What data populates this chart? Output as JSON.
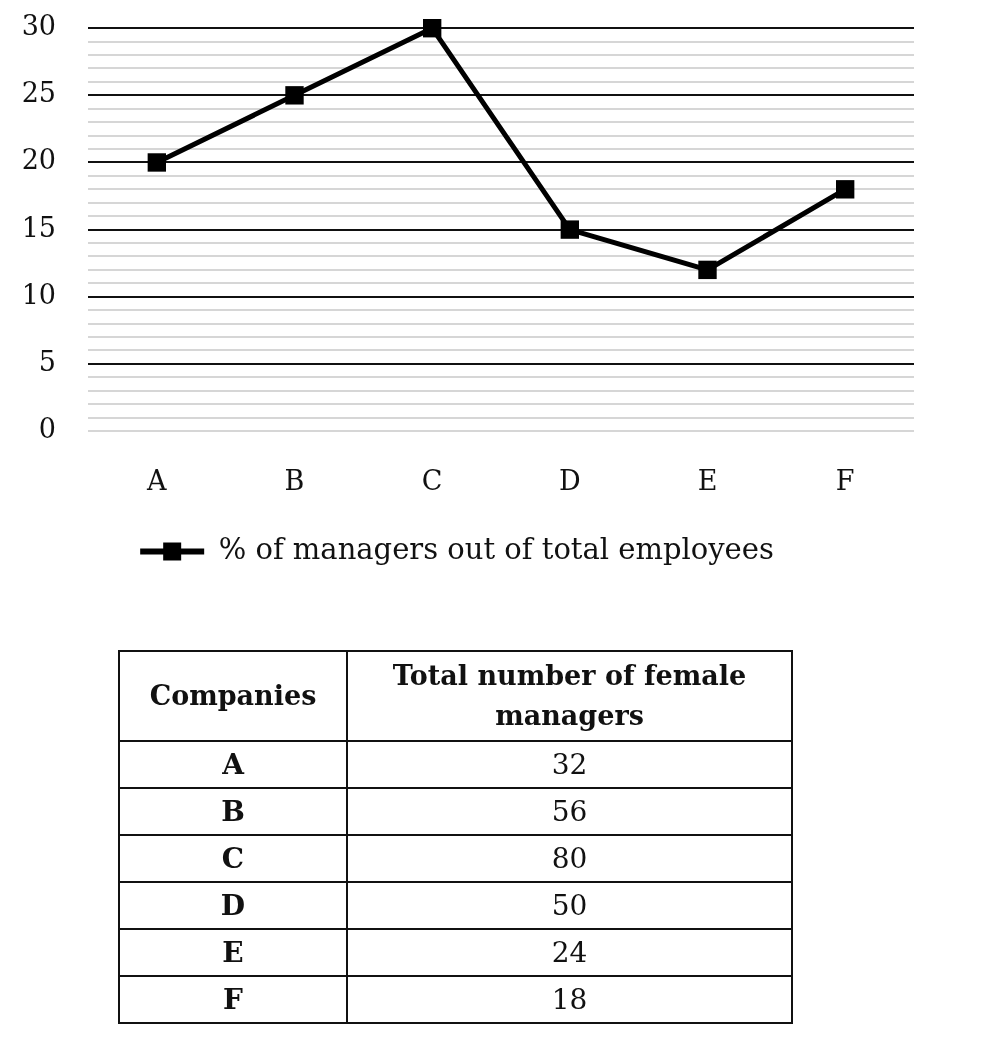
{
  "chart_data": [
    {
      "type": "line",
      "categories": [
        "A",
        "B",
        "C",
        "D",
        "E",
        "F"
      ],
      "series": [
        {
          "name": "% of managers out of total employees",
          "color": "#000000",
          "values": [
            20,
            25,
            30,
            15,
            12,
            18
          ]
        }
      ],
      "ylim": [
        0,
        30
      ],
      "yticks": [
        0,
        {
          "value": 1,
          "label": null
        },
        {
          "value": 2,
          "label": null
        },
        {
          "value": 3,
          "label": null
        },
        {
          "value": 4,
          "label": null
        },
        5,
        {
          "value": 6,
          "label": null
        },
        {
          "value": 7,
          "label": null
        },
        {
          "value": 8,
          "label": null
        },
        {
          "value": 9,
          "label": null
        },
        10,
        {
          "value": 11,
          "label": null
        },
        {
          "value": 12,
          "label": null
        },
        {
          "value": 13,
          "label": null
        },
        {
          "value": 14,
          "label": null
        },
        15,
        {
          "value": 16,
          "label": null
        },
        {
          "value": 17,
          "label": null
        },
        {
          "value": 18,
          "label": null
        },
        {
          "value": 19,
          "label": null
        },
        20,
        {
          "value": 21,
          "label": null
        },
        {
          "value": 22,
          "label": null
        },
        {
          "value": 23,
          "label": null
        },
        {
          "value": 24,
          "label": null
        },
        25,
        {
          "value": 26,
          "label": null
        },
        {
          "value": 27,
          "label": null
        },
        {
          "value": 28,
          "label": null
        },
        {
          "value": 29,
          "label": null
        },
        30
      ],
      "grid": "y",
      "legend": "bottom",
      "marker": "square",
      "line_style": "solid"
    },
    {
      "type": "other",
      "categories": [
        "A",
        "B",
        "C",
        "D",
        "E",
        "F"
      ],
      "values": [
        32,
        56,
        80,
        50,
        24,
        18
      ],
      "xlabel": "Companies",
      "ylabel": "Total number of female managers",
      "data_labels": true
    }
  ]
}
